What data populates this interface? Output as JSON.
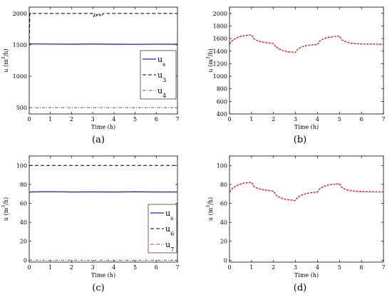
{
  "captions": [
    "(a)",
    "(b)",
    "(c)",
    "(d)"
  ],
  "chart_data": [
    {
      "id": "a",
      "type": "line",
      "xlabel": "Time (h)",
      "ylabel": "u (m³/h)",
      "ylabel_parts": {
        "base": "u (m",
        "sup": "3",
        "tail": "/h)"
      },
      "xlim": [
        0,
        7
      ],
      "ylim": [
        400,
        2100
      ],
      "xticks": [
        "0",
        "1",
        "2",
        "3",
        "4",
        "5",
        "6",
        "7"
      ],
      "yticks": [
        500,
        1000,
        1500,
        2000
      ],
      "ytick_labels": [
        "500",
        "1000",
        "1500",
        "2000"
      ],
      "legend": {
        "position": "right-middle"
      },
      "series": [
        {
          "name": "u",
          "sub": "s",
          "color": "#1f1fd6",
          "dash": "",
          "width": 1.3,
          "x": [
            0,
            1,
            2,
            3,
            4,
            5,
            6,
            7
          ],
          "y": [
            1515,
            1512,
            1510,
            1513,
            1510,
            1508,
            1511,
            1510
          ]
        },
        {
          "name": "u",
          "sub": "3",
          "color": "#000000",
          "dash": "5,3",
          "width": 1,
          "x": [
            0,
            0.03,
            3.0,
            3.05,
            3.1,
            3.15,
            3.2,
            3.25,
            3.3,
            3.35,
            3.4,
            3.45,
            3.5,
            7
          ],
          "y": [
            1500,
            2000,
            2000,
            1950,
            1990,
            1955,
            1985,
            1960,
            1990,
            1965,
            1995,
            1975,
            2000,
            2000
          ]
        },
        {
          "name": "u",
          "sub": "4",
          "color": "#e8161f",
          "dash": "4,2,1,2",
          "width": 1,
          "x": [
            0,
            7
          ],
          "y": [
            500,
            500
          ]
        }
      ]
    },
    {
      "id": "b",
      "type": "line",
      "xlabel": "Time (h)",
      "ylabel": "u (m³/h)",
      "ylabel_parts": {
        "base": "u (m",
        "sup": "3",
        "tail": "/h)"
      },
      "xlim": [
        0,
        7
      ],
      "ylim": [
        400,
        2100
      ],
      "xticks": [
        "0",
        "1",
        "2",
        "3",
        "4",
        "5",
        "6",
        "7"
      ],
      "yticks": [
        400,
        600,
        800,
        1000,
        1200,
        1400,
        1600,
        1800,
        2000
      ],
      "ytick_labels": [
        "400",
        "600",
        "800",
        "1000",
        "1200",
        "1400",
        "1600",
        "1800",
        "2000"
      ],
      "legend": null,
      "series": [
        {
          "color": "#e8161f",
          "dash": "3,1.5",
          "width": 1.4,
          "x": [
            0,
            0.1,
            0.3,
            0.5,
            0.7,
            0.9,
            1.0,
            1.1,
            1.3,
            1.5,
            1.8,
            2.0,
            2.1,
            2.3,
            2.5,
            2.8,
            3.0,
            3.1,
            3.3,
            3.5,
            3.8,
            4.0,
            4.1,
            4.3,
            4.5,
            4.8,
            5.0,
            5.1,
            5.3,
            5.5,
            5.8,
            6.0,
            6.5,
            7.0
          ],
          "y": [
            1510,
            1560,
            1610,
            1635,
            1648,
            1655,
            1658,
            1600,
            1560,
            1545,
            1530,
            1520,
            1470,
            1425,
            1400,
            1385,
            1380,
            1430,
            1470,
            1490,
            1500,
            1505,
            1560,
            1600,
            1620,
            1632,
            1640,
            1580,
            1545,
            1527,
            1518,
            1514,
            1512,
            1510
          ]
        }
      ]
    },
    {
      "id": "c",
      "type": "line",
      "xlabel": "Time (h)",
      "ylabel": "u (m³/h)",
      "ylabel_parts": {
        "base": "u (m",
        "sup": "3",
        "tail": "/h)"
      },
      "xlim": [
        0,
        7
      ],
      "ylim": [
        -2,
        110
      ],
      "xticks": [
        "0",
        "1",
        "2",
        "3",
        "4",
        "5",
        "6",
        "7"
      ],
      "yticks": [
        0,
        20,
        40,
        60,
        80,
        100
      ],
      "ytick_labels": [
        "0",
        "20",
        "40",
        "60",
        "80",
        "100"
      ],
      "legend": {
        "position": "right-bottom"
      },
      "series": [
        {
          "name": "u",
          "sub": "s",
          "color": "#1f1fd6",
          "dash": "",
          "width": 1.3,
          "x": [
            0,
            1,
            2,
            3,
            4,
            5,
            6,
            7
          ],
          "y": [
            72,
            72.3,
            72,
            72.1,
            72,
            72.2,
            72,
            72
          ]
        },
        {
          "name": "u",
          "sub": "6",
          "color": "#000000",
          "dash": "5,3",
          "width": 1,
          "x": [
            0,
            7
          ],
          "y": [
            100,
            100
          ]
        },
        {
          "name": "u",
          "sub": "7",
          "color": "#e8161f",
          "dash": "4,2,1,2",
          "width": 1,
          "x": [
            0,
            7
          ],
          "y": [
            0,
            0
          ]
        }
      ]
    },
    {
      "id": "d",
      "type": "line",
      "xlabel": "Time (h)",
      "ylabel": "u (m³/h)",
      "ylabel_parts": {
        "base": "u (m",
        "sup": "3",
        "tail": "/h)"
      },
      "xlim": [
        0,
        7
      ],
      "ylim": [
        -2,
        110
      ],
      "xticks": [
        "0",
        "1",
        "2",
        "3",
        "4",
        "5",
        "6",
        "7"
      ],
      "yticks": [
        0,
        20,
        40,
        60,
        80,
        100
      ],
      "ytick_labels": [
        "0",
        "20",
        "40",
        "60",
        "80",
        "100"
      ],
      "legend": null,
      "series": [
        {
          "color": "#e8161f",
          "dash": "3,1.5",
          "width": 1.4,
          "x": [
            0,
            0.1,
            0.3,
            0.5,
            0.7,
            0.9,
            1.0,
            1.1,
            1.3,
            1.5,
            1.8,
            2.0,
            2.1,
            2.3,
            2.5,
            2.8,
            3.0,
            3.1,
            3.3,
            3.5,
            3.8,
            4.0,
            4.1,
            4.3,
            4.5,
            4.8,
            5.0,
            5.1,
            5.3,
            5.5,
            5.8,
            6.0,
            6.5,
            7.0
          ],
          "y": [
            72,
            75,
            78.5,
            80.5,
            81.5,
            82,
            82.3,
            78,
            75.5,
            74.5,
            73.5,
            73,
            69,
            66,
            64.5,
            63.5,
            63,
            66.5,
            69,
            70.5,
            71.5,
            72,
            75.5,
            78,
            79.5,
            80.3,
            80.8,
            77,
            74.5,
            73.5,
            72.8,
            72.5,
            72.2,
            72
          ]
        }
      ]
    }
  ]
}
